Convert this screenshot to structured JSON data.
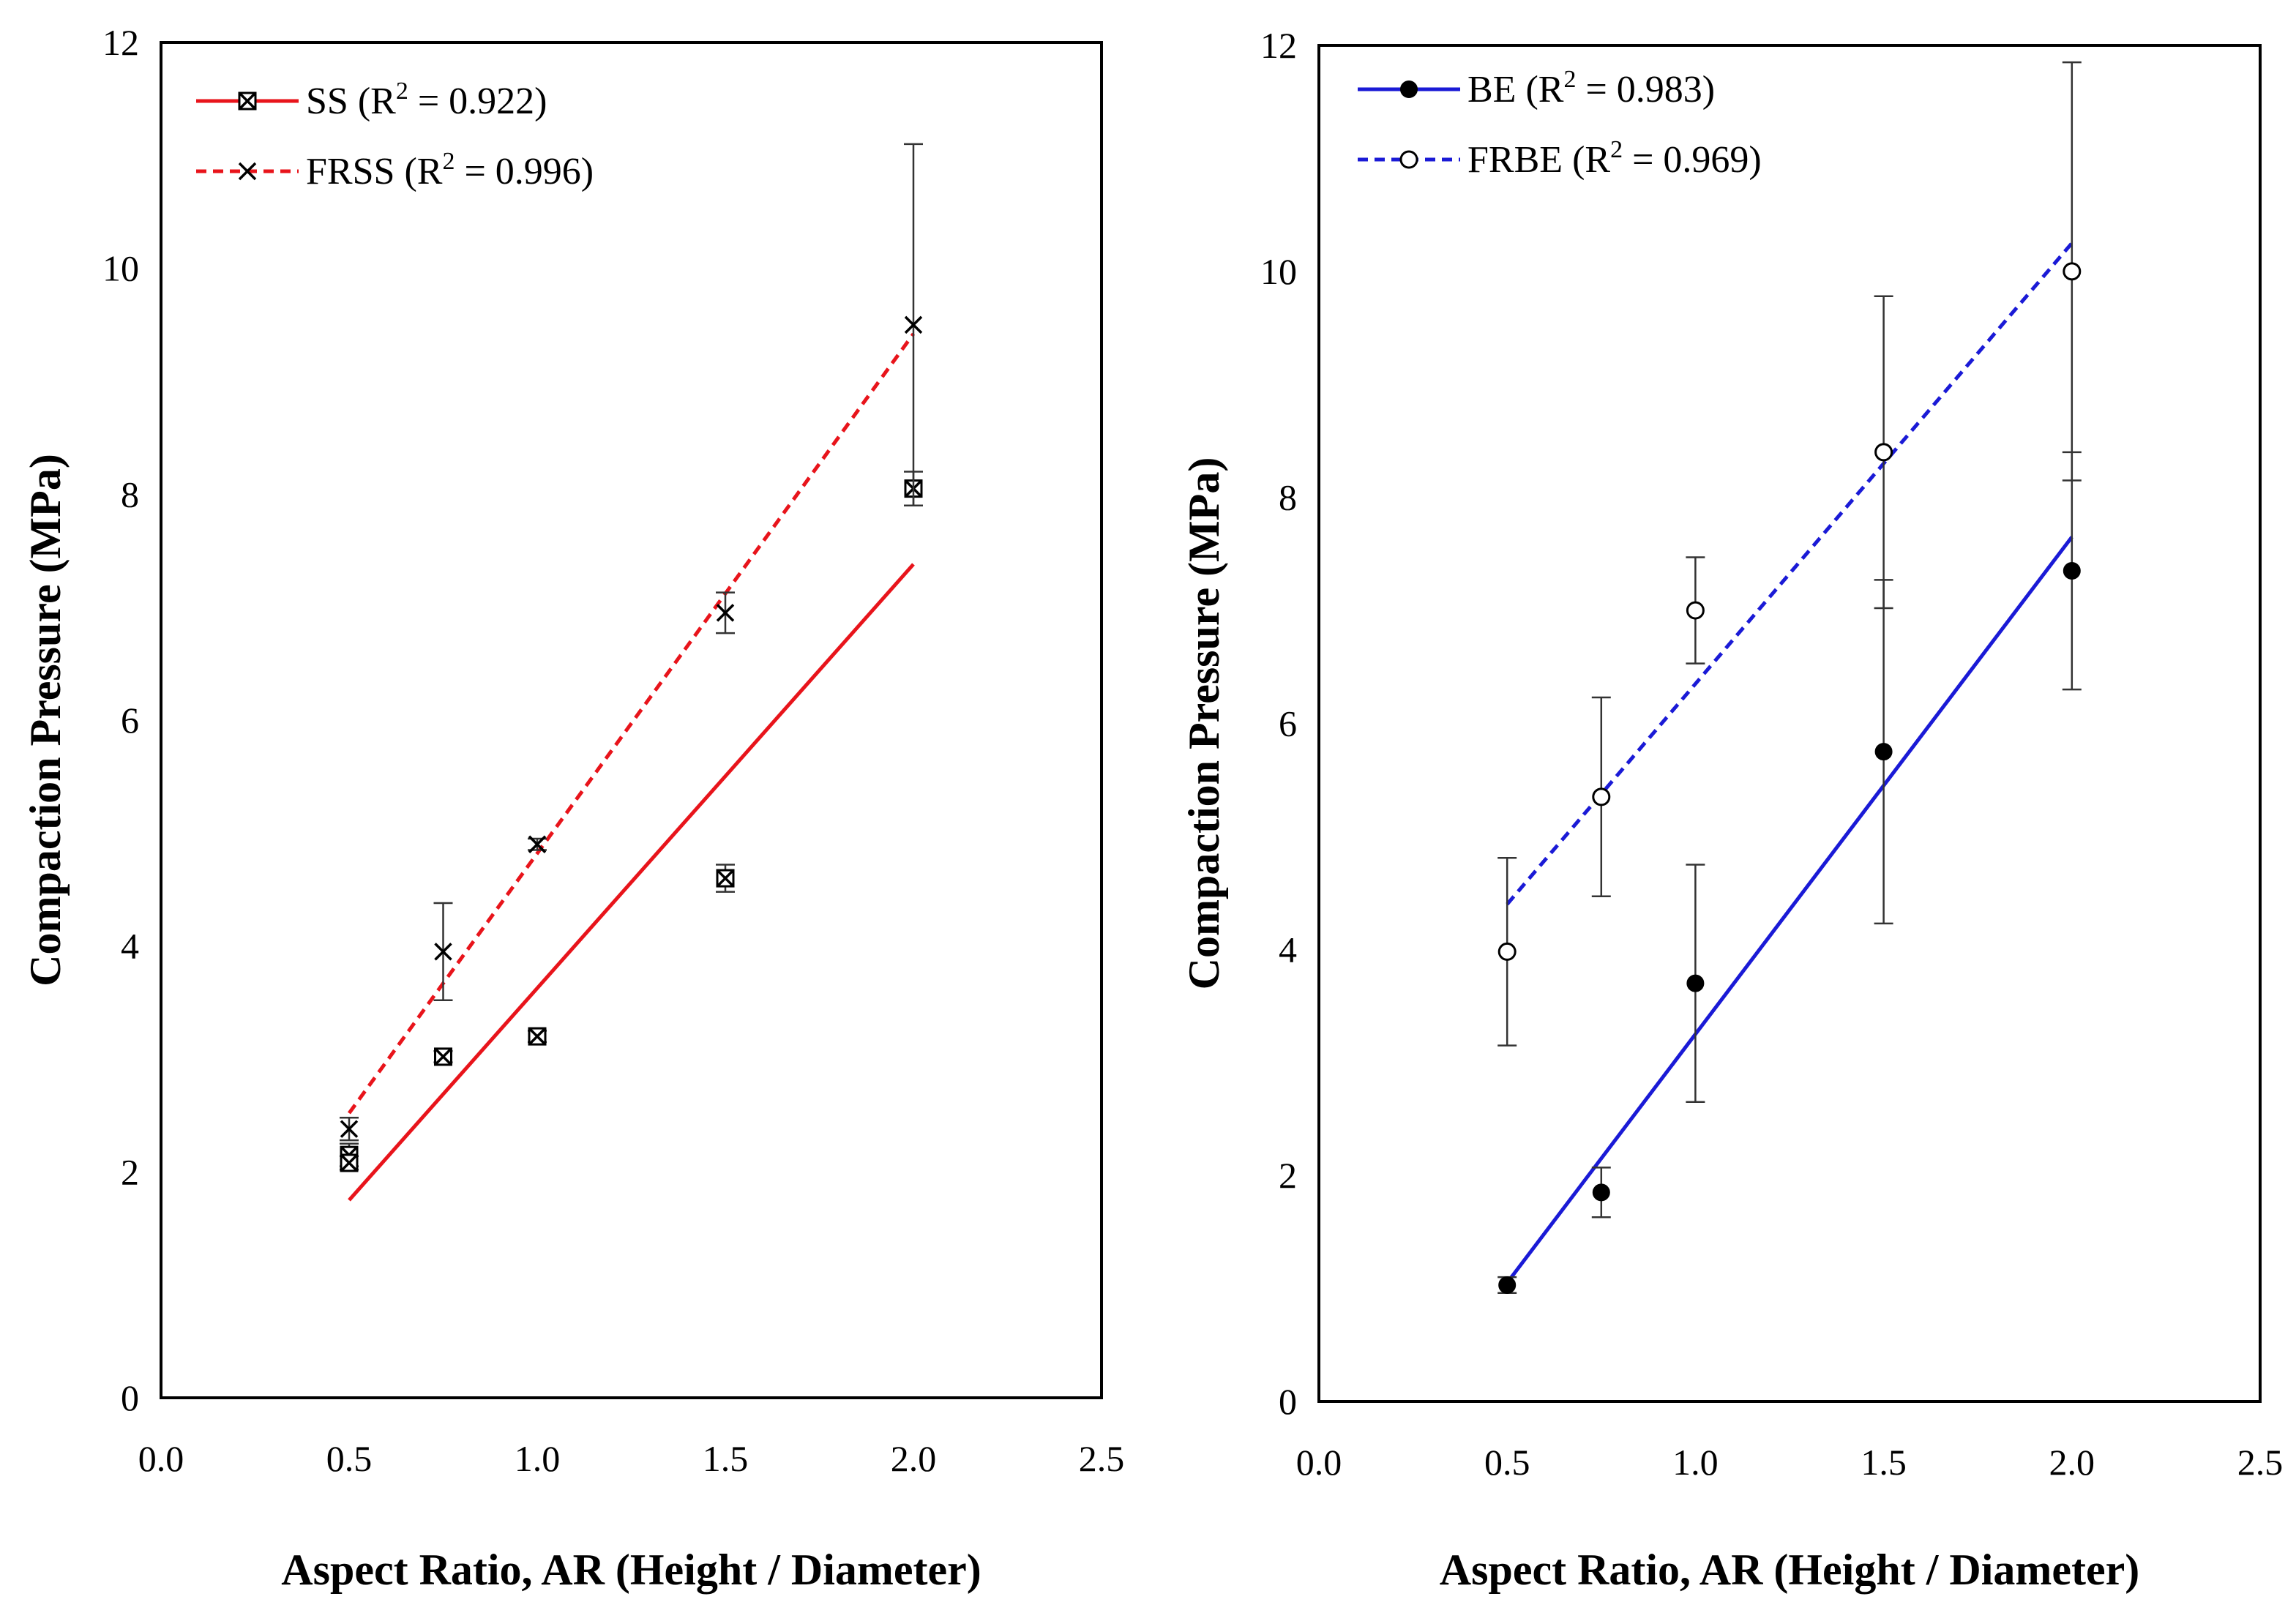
{
  "chart_data": [
    {
      "type": "scatter",
      "title": "",
      "xlabel": "Aspect Ratio, AR (Height / Diameter)",
      "ylabel": "Compaction Pressure (MPa)",
      "xlim": [
        0,
        2.5
      ],
      "ylim": [
        0,
        12
      ],
      "x_ticks": [
        "0.0",
        "0.5",
        "1.0",
        "1.5",
        "2.0",
        "2.5"
      ],
      "y_ticks": [
        "0",
        "2",
        "4",
        "6",
        "8",
        "10",
        "12"
      ],
      "grid": false,
      "legend_position": "top-left",
      "series": [
        {
          "name": "SS",
          "r2_label": "(R",
          "r2_value": " = 0.922)",
          "color": "#e8141b",
          "marker": "boxed-x",
          "line_style": "solid",
          "points": [
            {
              "x": 0.5,
              "y": 2.15,
              "err": 0.1
            },
            {
              "x": 0.5,
              "y": 2.08,
              "err": 0.06
            },
            {
              "x": 0.75,
              "y": 3.02,
              "err": 0.05
            },
            {
              "x": 1.0,
              "y": 3.2,
              "err": 0.05
            },
            {
              "x": 1.5,
              "y": 4.6,
              "err": 0.12
            },
            {
              "x": 2.0,
              "y": 8.05,
              "err": 0.15
            }
          ],
          "trendline": {
            "x": [
              0.5,
              2.0
            ],
            "y": [
              1.75,
              7.38
            ]
          }
        },
        {
          "name": "FRSS",
          "r2_label": "(R",
          "r2_value": " = 0.996)",
          "color": "#e8141b",
          "marker": "x",
          "line_style": "dashed",
          "points": [
            {
              "x": 0.5,
              "y": 2.38,
              "err": 0.1
            },
            {
              "x": 0.75,
              "y": 3.95,
              "err": 0.43
            },
            {
              "x": 1.0,
              "y": 4.9,
              "err": 0.05
            },
            {
              "x": 1.5,
              "y": 6.95,
              "err": 0.18
            },
            {
              "x": 2.0,
              "y": 9.5,
              "err": 1.6
            }
          ],
          "trendline": {
            "x": [
              0.5,
              2.0
            ],
            "y": [
              2.52,
              9.42
            ]
          }
        }
      ]
    },
    {
      "type": "scatter",
      "title": "",
      "xlabel": "Aspect Ratio, AR (Height / Diameter)",
      "ylabel": "Compaction Pressure (MPa)",
      "xlim": [
        0,
        2.5
      ],
      "ylim": [
        0,
        12
      ],
      "x_ticks": [
        "0.0",
        "0.5",
        "1.0",
        "1.5",
        "2.0",
        "2.5"
      ],
      "y_ticks": [
        "0",
        "2",
        "4",
        "6",
        "8",
        "10",
        "12"
      ],
      "grid": false,
      "legend_position": "top-left",
      "series": [
        {
          "name": "BE",
          "r2_label": "(R",
          "r2_value": " = 0.983)",
          "color": "#1a1ad6",
          "marker": "filled-circle",
          "line_style": "solid",
          "points": [
            {
              "x": 0.5,
              "y": 1.03,
              "err": 0.07
            },
            {
              "x": 0.75,
              "y": 1.85,
              "err": 0.22
            },
            {
              "x": 1.0,
              "y": 3.7,
              "err": 1.05
            },
            {
              "x": 1.5,
              "y": 5.75,
              "err": 1.52
            },
            {
              "x": 2.0,
              "y": 7.35,
              "err": 1.05
            }
          ],
          "trendline": {
            "x": [
              0.5,
              2.0
            ],
            "y": [
              1.05,
              7.65
            ]
          }
        },
        {
          "name": "FRBE",
          "r2_label": "(R",
          "r2_value": " = 0.969)",
          "color": "#1a1ad6",
          "marker": "open-circle",
          "line_style": "dashed",
          "points": [
            {
              "x": 0.5,
              "y": 3.98,
              "err": 0.83
            },
            {
              "x": 0.75,
              "y": 5.35,
              "err": 0.88
            },
            {
              "x": 1.0,
              "y": 7.0,
              "err": 0.47
            },
            {
              "x": 1.5,
              "y": 8.4,
              "err": 1.38
            },
            {
              "x": 2.0,
              "y": 10.0,
              "err": 1.85
            }
          ],
          "trendline": {
            "x": [
              0.5,
              2.0
            ],
            "y": [
              4.4,
              10.25
            ]
          }
        }
      ]
    }
  ]
}
